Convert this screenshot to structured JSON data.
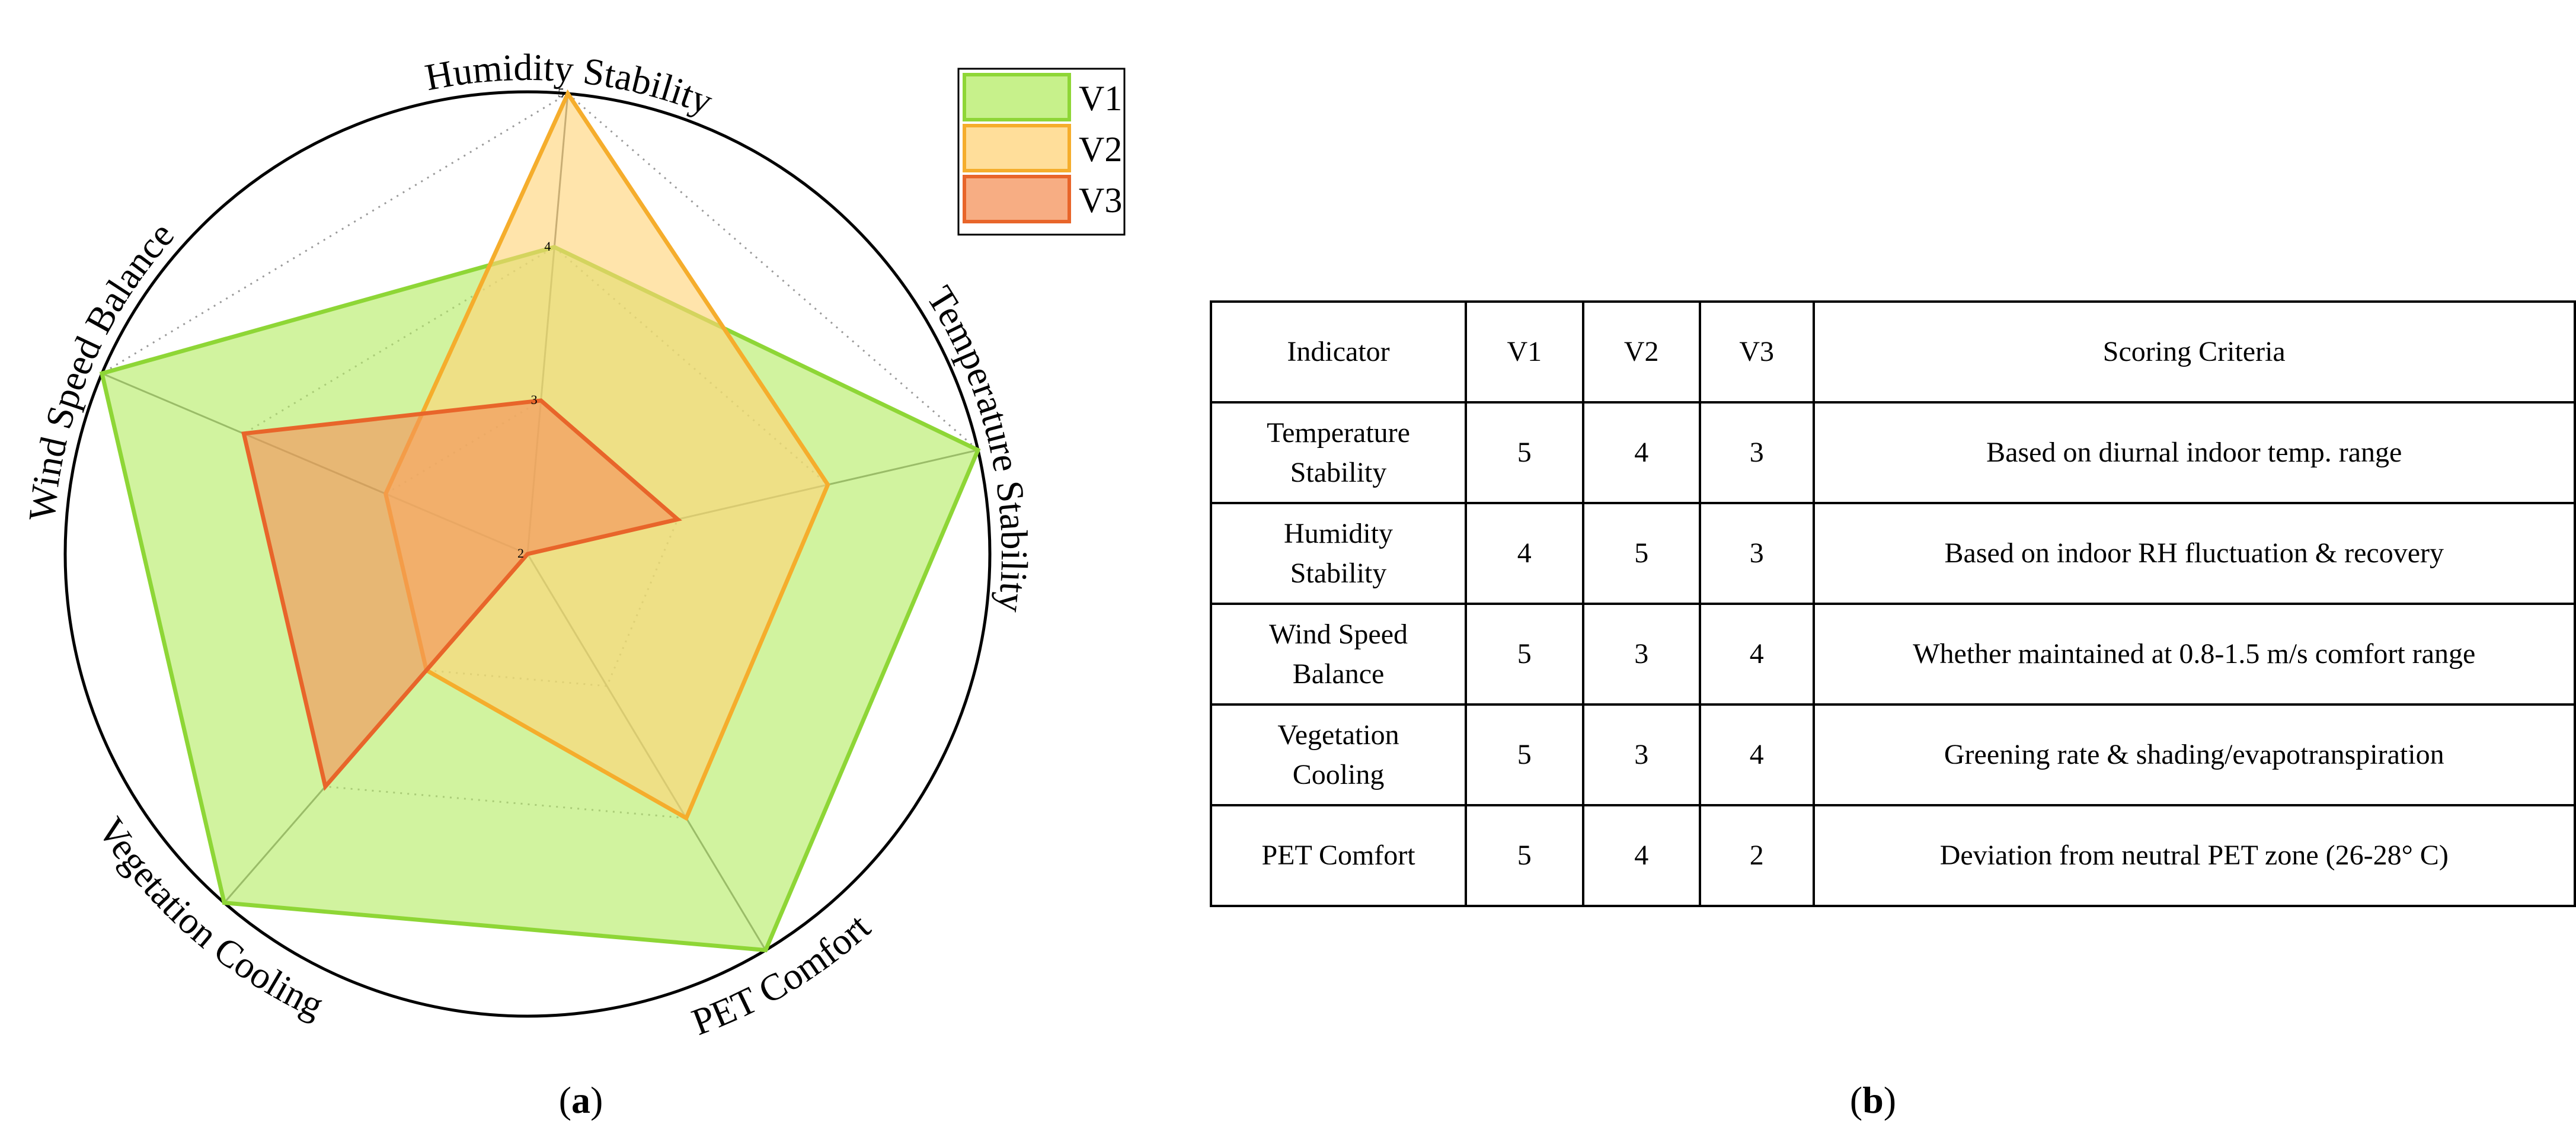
{
  "chart_data": {
    "type": "radar",
    "axes": [
      "Humidity Stability",
      "Temperature Stability",
      "PET Comfort",
      "Vegetation Cooling",
      "Wind Speed Balance"
    ],
    "rlim": [
      2,
      5
    ],
    "ticks": [
      2,
      3,
      4,
      5
    ],
    "grid": true,
    "legend_position": "top-right",
    "series": [
      {
        "name": "V1",
        "values": [
          4,
          5,
          5,
          5,
          5
        ],
        "fill": "#b4ec64",
        "stroke": "#8ed636"
      },
      {
        "name": "V2",
        "values": [
          5,
          4,
          4,
          3,
          3
        ],
        "fill": "#ffd378",
        "stroke": "#f5ad2c"
      },
      {
        "name": "V3",
        "values": [
          3,
          3,
          2,
          4,
          4
        ],
        "fill": "#f4925a",
        "stroke": "#e8652a"
      }
    ]
  },
  "table": {
    "headers": [
      "Indicator",
      "V1",
      "V2",
      "V3",
      "Scoring Criteria"
    ],
    "rows": [
      {
        "indicator": [
          "Temperature",
          "Stability"
        ],
        "v1": "5",
        "v2": "4",
        "v3": "3",
        "criteria": "Based on diurnal indoor temp. range"
      },
      {
        "indicator": [
          "Humidity",
          "Stability"
        ],
        "v1": "4",
        "v2": "5",
        "v3": "3",
        "criteria": "Based on indoor RH fluctuation & recovery"
      },
      {
        "indicator": [
          "Wind Speed",
          "Balance"
        ],
        "v1": "5",
        "v2": "3",
        "v3": "4",
        "criteria": "Whether maintained at 0.8-1.5 m/s comfort range"
      },
      {
        "indicator": [
          "Vegetation",
          "Cooling"
        ],
        "v1": "5",
        "v2": "3",
        "v3": "4",
        "criteria": "Greening rate & shading/evapotranspiration"
      },
      {
        "indicator": [
          "PET Comfort"
        ],
        "v1": "5",
        "v2": "4",
        "v3": "2",
        "criteria": "Deviation from neutral PET zone (26-28° C)"
      }
    ]
  },
  "labels": {
    "a_open": "(",
    "a_letter": "a",
    "a_close": ")",
    "b_open": "(",
    "b_letter": "b",
    "b_close": ")"
  }
}
